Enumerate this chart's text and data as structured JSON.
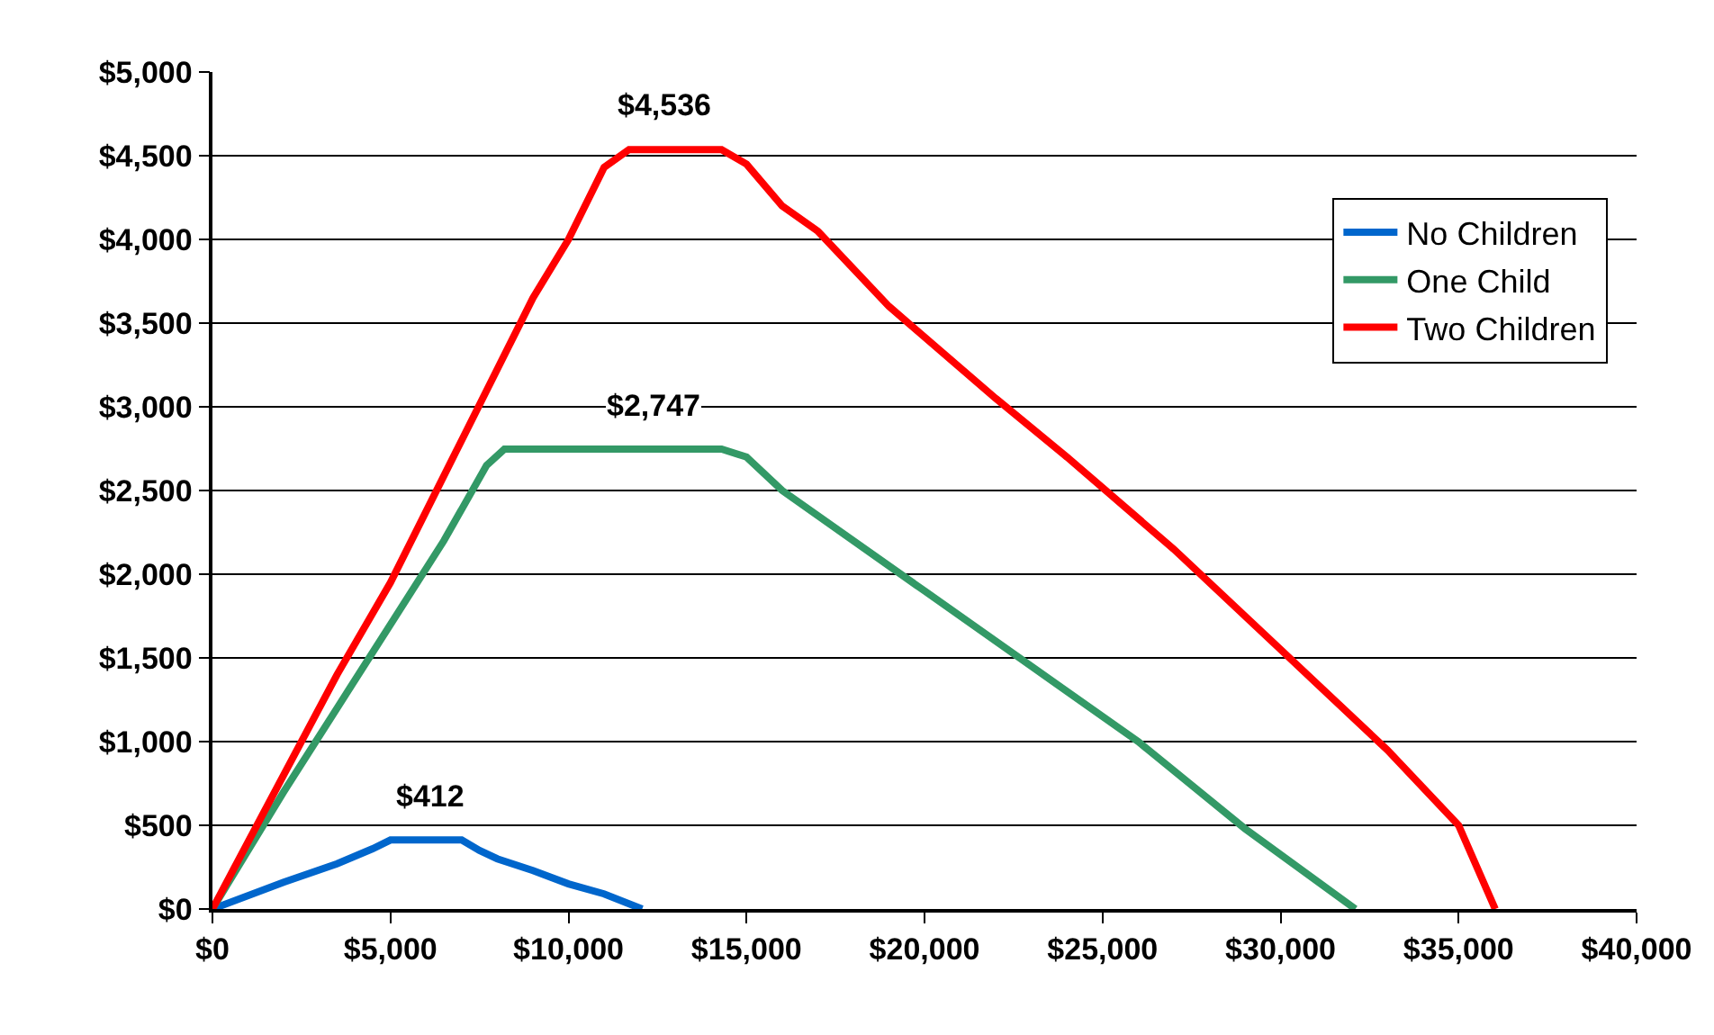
{
  "chart_data": {
    "type": "line",
    "series": [
      {
        "name": "No Children",
        "color": "#0066cc",
        "x": [
          0,
          2000,
          3500,
          4500,
          5000,
          7000,
          7500,
          8000,
          9000,
          10000,
          11000,
          12070
        ],
        "values": [
          0,
          160,
          270,
          360,
          412,
          412,
          350,
          300,
          230,
          150,
          90,
          0
        ]
      },
      {
        "name": "One Child",
        "color": "#339966",
        "x": [
          0,
          2000,
          3500,
          5000,
          6500,
          7700,
          8200,
          8700,
          14300,
          15000,
          16000,
          20000,
          23000,
          26000,
          29000,
          32100
        ],
        "values": [
          0,
          700,
          1200,
          1700,
          2200,
          2650,
          2747,
          2747,
          2747,
          2700,
          2500,
          1900,
          1450,
          1000,
          480,
          0
        ]
      },
      {
        "name": "Two Children",
        "color": "#ff0000",
        "x": [
          0,
          2000,
          3500,
          5000,
          7000,
          9000,
          10000,
          11000,
          11700,
          14300,
          15000,
          16000,
          17000,
          19000,
          22000,
          24000,
          27000,
          30000,
          33000,
          35000,
          36030
        ],
        "values": [
          0,
          800,
          1400,
          1950,
          2800,
          3650,
          4000,
          4430,
          4536,
          4536,
          4450,
          4200,
          4050,
          3600,
          3050,
          2700,
          2150,
          1550,
          950,
          500,
          0
        ]
      }
    ],
    "xlim": [
      0,
      40000
    ],
    "xticks": [
      {
        "value": 0,
        "label": "$0"
      },
      {
        "value": 5000,
        "label": "$5,000"
      },
      {
        "value": 10000,
        "label": "$10,000"
      },
      {
        "value": 15000,
        "label": "$15,000"
      },
      {
        "value": 20000,
        "label": "$20,000"
      },
      {
        "value": 25000,
        "label": "$25,000"
      },
      {
        "value": 30000,
        "label": "$30,000"
      },
      {
        "value": 35000,
        "label": "$35,000"
      },
      {
        "value": 40000,
        "label": "$40,000"
      }
    ],
    "ylim": [
      0,
      5000
    ],
    "yticks": [
      {
        "value": 0,
        "label": "$0"
      },
      {
        "value": 500,
        "label": "$500"
      },
      {
        "value": 1000,
        "label": "$1,000"
      },
      {
        "value": 1500,
        "label": "$1,500"
      },
      {
        "value": 2000,
        "label": "$2,000"
      },
      {
        "value": 2500,
        "label": "$2,500"
      },
      {
        "value": 3000,
        "label": "$3,000"
      },
      {
        "value": 3500,
        "label": "$3,500"
      },
      {
        "value": 4000,
        "label": "$4,000"
      },
      {
        "value": 4500,
        "label": "$4,500"
      },
      {
        "value": 5000,
        "label": "$5,000"
      }
    ],
    "annotations": [
      {
        "text": "$412",
        "x": 6100,
        "y": 412
      },
      {
        "text": "$2,747",
        "x": 12400,
        "y": 2747
      },
      {
        "text": "$4,536",
        "x": 12700,
        "y": 4536
      }
    ],
    "grid": "y",
    "legend": "top right",
    "marker": "none",
    "line_style": "solid"
  }
}
